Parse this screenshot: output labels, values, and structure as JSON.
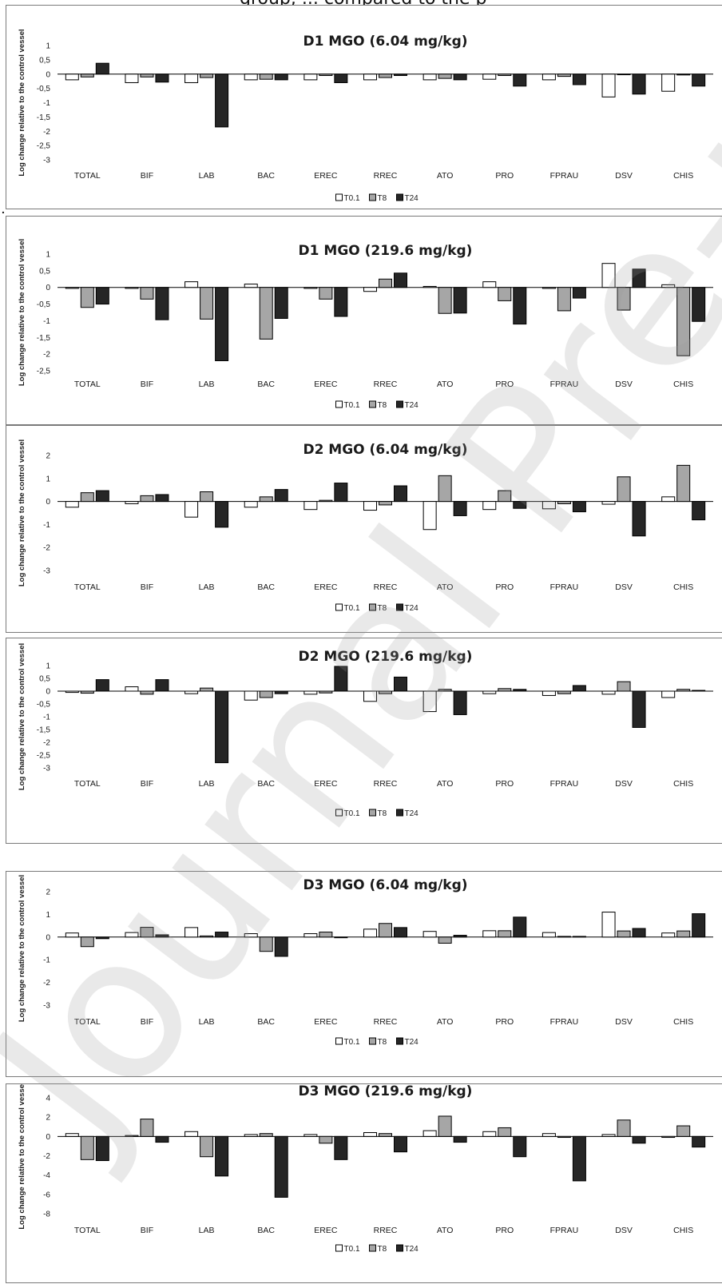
{
  "header": {
    "cut_text": "group, ... compared to the p"
  },
  "ylabel": "Log change relative to the control vessel",
  "categories": [
    "TOTAL",
    "BIF",
    "LAB",
    "BAC",
    "EREC",
    "RREC",
    "ATO",
    "PRO",
    "FPRAU",
    "DSV",
    "CHIS"
  ],
  "legend": [
    "T0.1",
    "T8",
    "T24"
  ],
  "colors": {
    "T0.1": "#ffffff",
    "T8": "#a6a6a6",
    "T24": "#262626",
    "edge": "#000000"
  },
  "watermark": "Journal Pre-proof",
  "chart_data": [
    {
      "type": "bar",
      "title": "D1 MGO (6.04 mg/kg)",
      "ylim": [
        -3,
        1
      ],
      "yticks": [
        "1",
        "0,5",
        "0",
        "-0,5",
        "-1",
        "-1,5",
        "-2",
        "-2,5",
        "-3"
      ],
      "categories": [
        "TOTAL",
        "BIF",
        "LAB",
        "BAC",
        "EREC",
        "RREC",
        "ATO",
        "PRO",
        "FPRAU",
        "DSV",
        "CHIS"
      ],
      "series": [
        {
          "name": "T0.1",
          "values": [
            -0.2,
            -0.3,
            -0.3,
            -0.2,
            -0.2,
            -0.2,
            -0.2,
            -0.18,
            -0.2,
            -0.8,
            -0.6
          ]
        },
        {
          "name": "T8",
          "values": [
            -0.1,
            -0.1,
            -0.12,
            -0.18,
            -0.05,
            -0.12,
            -0.15,
            -0.05,
            -0.08,
            -0.02,
            -0.03
          ]
        },
        {
          "name": "T24",
          "values": [
            0.38,
            -0.28,
            -1.85,
            -0.2,
            -0.3,
            -0.05,
            -0.2,
            -0.42,
            -0.37,
            -0.7,
            -0.42
          ]
        }
      ]
    },
    {
      "type": "bar",
      "title": "D1 MGO (219.6 mg/kg)",
      "ylim": [
        -2.5,
        1
      ],
      "yticks": [
        "1",
        "0,5",
        "0",
        "-0,5",
        "-1",
        "-1,5",
        "-2",
        "-2,5"
      ],
      "categories": [
        "TOTAL",
        "BIF",
        "LAB",
        "BAC",
        "EREC",
        "RREC",
        "ATO",
        "PRO",
        "FPRAU",
        "DSV",
        "CHIS"
      ],
      "series": [
        {
          "name": "T0.1",
          "values": [
            -0.03,
            -0.03,
            0.17,
            0.1,
            -0.03,
            -0.12,
            0.03,
            0.17,
            -0.03,
            0.72,
            0.08
          ]
        },
        {
          "name": "T8",
          "values": [
            -0.6,
            -0.35,
            -0.95,
            -1.55,
            -0.35,
            0.25,
            -0.78,
            -0.4,
            -0.7,
            -0.68,
            -2.05
          ]
        },
        {
          "name": "T24",
          "values": [
            -0.5,
            -0.97,
            -2.2,
            -0.93,
            -0.87,
            0.43,
            -0.77,
            -1.1,
            -0.32,
            0.55,
            -1.02
          ]
        }
      ]
    },
    {
      "type": "bar",
      "title": "D2 MGO (6.04 mg/kg)",
      "ylim": [
        -3,
        2
      ],
      "yticks": [
        "2",
        "1",
        "0",
        "-1",
        "-2",
        "-3"
      ],
      "categories": [
        "TOTAL",
        "BIF",
        "LAB",
        "BAC",
        "EREC",
        "RREC",
        "ATO",
        "PRO",
        "FPRAU",
        "DSV",
        "CHIS"
      ],
      "series": [
        {
          "name": "T0.1",
          "values": [
            -0.25,
            -0.1,
            -0.68,
            -0.25,
            -0.35,
            -0.38,
            -1.22,
            -0.35,
            -0.32,
            -0.12,
            0.2
          ]
        },
        {
          "name": "T8",
          "values": [
            0.38,
            0.25,
            0.42,
            0.2,
            0.05,
            -0.15,
            1.12,
            0.47,
            -0.1,
            1.07,
            1.57
          ]
        },
        {
          "name": "T24",
          "values": [
            0.47,
            0.3,
            -1.12,
            0.52,
            0.8,
            0.68,
            -0.62,
            -0.3,
            -0.45,
            -1.5,
            -0.8
          ]
        }
      ]
    },
    {
      "type": "bar",
      "title": "D2 MGO (219.6 mg/kg)",
      "ylim": [
        -3,
        1
      ],
      "yticks": [
        "1",
        "0,5",
        "0",
        "-0,5",
        "-1",
        "-1,5",
        "-2",
        "-2,5",
        "-3"
      ],
      "categories": [
        "TOTAL",
        "BIF",
        "LAB",
        "BAC",
        "EREC",
        "RREC",
        "ATO",
        "PRO",
        "FPRAU",
        "DSV",
        "CHIS"
      ],
      "series": [
        {
          "name": "T0.1",
          "values": [
            -0.05,
            0.17,
            -0.1,
            -0.35,
            -0.12,
            -0.4,
            -0.8,
            -0.1,
            -0.17,
            -0.12,
            -0.25
          ]
        },
        {
          "name": "T8",
          "values": [
            -0.08,
            -0.12,
            0.12,
            -0.25,
            -0.07,
            -0.1,
            0.07,
            0.1,
            -0.1,
            0.37,
            0.07
          ]
        },
        {
          "name": "T24",
          "values": [
            0.45,
            0.45,
            -2.8,
            -0.1,
            0.97,
            0.55,
            -0.92,
            0.07,
            0.22,
            -1.42,
            0.03
          ]
        }
      ]
    },
    {
      "type": "bar",
      "title": "D3 MGO (6.04 mg/kg)",
      "ylim": [
        -3,
        2
      ],
      "yticks": [
        "2",
        "1",
        "0",
        "-1",
        "-2",
        "-3"
      ],
      "categories": [
        "TOTAL",
        "BIF",
        "LAB",
        "BAC",
        "EREC",
        "RREC",
        "ATO",
        "PRO",
        "FPRAU",
        "DSV",
        "CHIS"
      ],
      "series": [
        {
          "name": "T0.1",
          "values": [
            0.18,
            0.2,
            0.42,
            0.15,
            0.15,
            0.35,
            0.25,
            0.28,
            0.2,
            1.1,
            0.18
          ]
        },
        {
          "name": "T8",
          "values": [
            -0.42,
            0.43,
            0.05,
            -0.63,
            0.22,
            0.6,
            -0.27,
            0.28,
            0.03,
            0.27,
            0.27
          ]
        },
        {
          "name": "T24",
          "values": [
            -0.07,
            0.1,
            0.22,
            -0.85,
            -0.03,
            0.42,
            0.08,
            0.88,
            0.03,
            0.38,
            1.03
          ]
        }
      ]
    },
    {
      "type": "bar",
      "title": "D3 MGO (219.6 mg/kg)",
      "ylim": [
        -8,
        4
      ],
      "yticks": [
        "4",
        "2",
        "0",
        "-2",
        "-4",
        "-6",
        "-8"
      ],
      "categories": [
        "TOTAL",
        "BIF",
        "LAB",
        "BAC",
        "EREC",
        "RREC",
        "ATO",
        "PRO",
        "FPRAU",
        "DSV",
        "CHIS"
      ],
      "series": [
        {
          "name": "T0.1",
          "values": [
            0.3,
            0.1,
            0.5,
            0.2,
            0.2,
            0.4,
            0.6,
            0.5,
            0.3,
            0.2,
            -0.1
          ]
        },
        {
          "name": "T8",
          "values": [
            -2.4,
            1.8,
            -2.1,
            0.3,
            -0.7,
            0.3,
            2.1,
            0.9,
            -0.1,
            1.7,
            1.1
          ]
        },
        {
          "name": "T24",
          "values": [
            -2.5,
            -0.6,
            -4.1,
            -6.3,
            -2.4,
            -1.6,
            -0.6,
            -2.1,
            -4.6,
            -0.7,
            -1.1
          ]
        }
      ]
    }
  ]
}
